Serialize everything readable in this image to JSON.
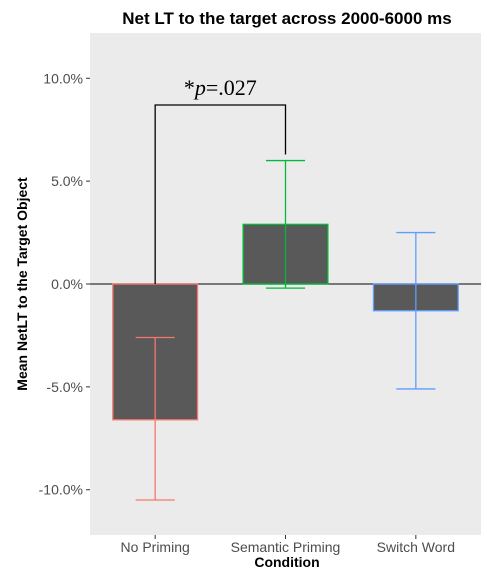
{
  "chart_data": {
    "type": "bar",
    "title": "Net LT to the target across 2000-6000 ms",
    "xlabel": "Condition",
    "ylabel": "Mean NetLT to the Target Object",
    "categories": [
      "No Priming",
      "Semantic Priming",
      "Switch Word"
    ],
    "values": [
      -6.6,
      2.9,
      -1.3
    ],
    "error_low": [
      -10.5,
      -0.2,
      -5.1
    ],
    "error_high": [
      -2.6,
      6.0,
      2.5
    ],
    "error_colors": [
      "#F8766D",
      "#00BA38",
      "#619CFF"
    ],
    "bar_fill": "#595959",
    "panel_background": "#EBEBEB",
    "ylim": [
      -12.2,
      12.2
    ],
    "yticks": [
      10,
      5,
      0,
      -5,
      -10
    ],
    "ytick_labels": [
      "10.0%",
      "5.0%",
      "0.0%",
      "-5.0%",
      "-10.0%"
    ],
    "grid": false,
    "annotation": {
      "star": "*",
      "p_symbol": "p",
      "rest": "=.027",
      "from_category": 0,
      "to_category": 1,
      "bracket_top": 8.7
    }
  }
}
